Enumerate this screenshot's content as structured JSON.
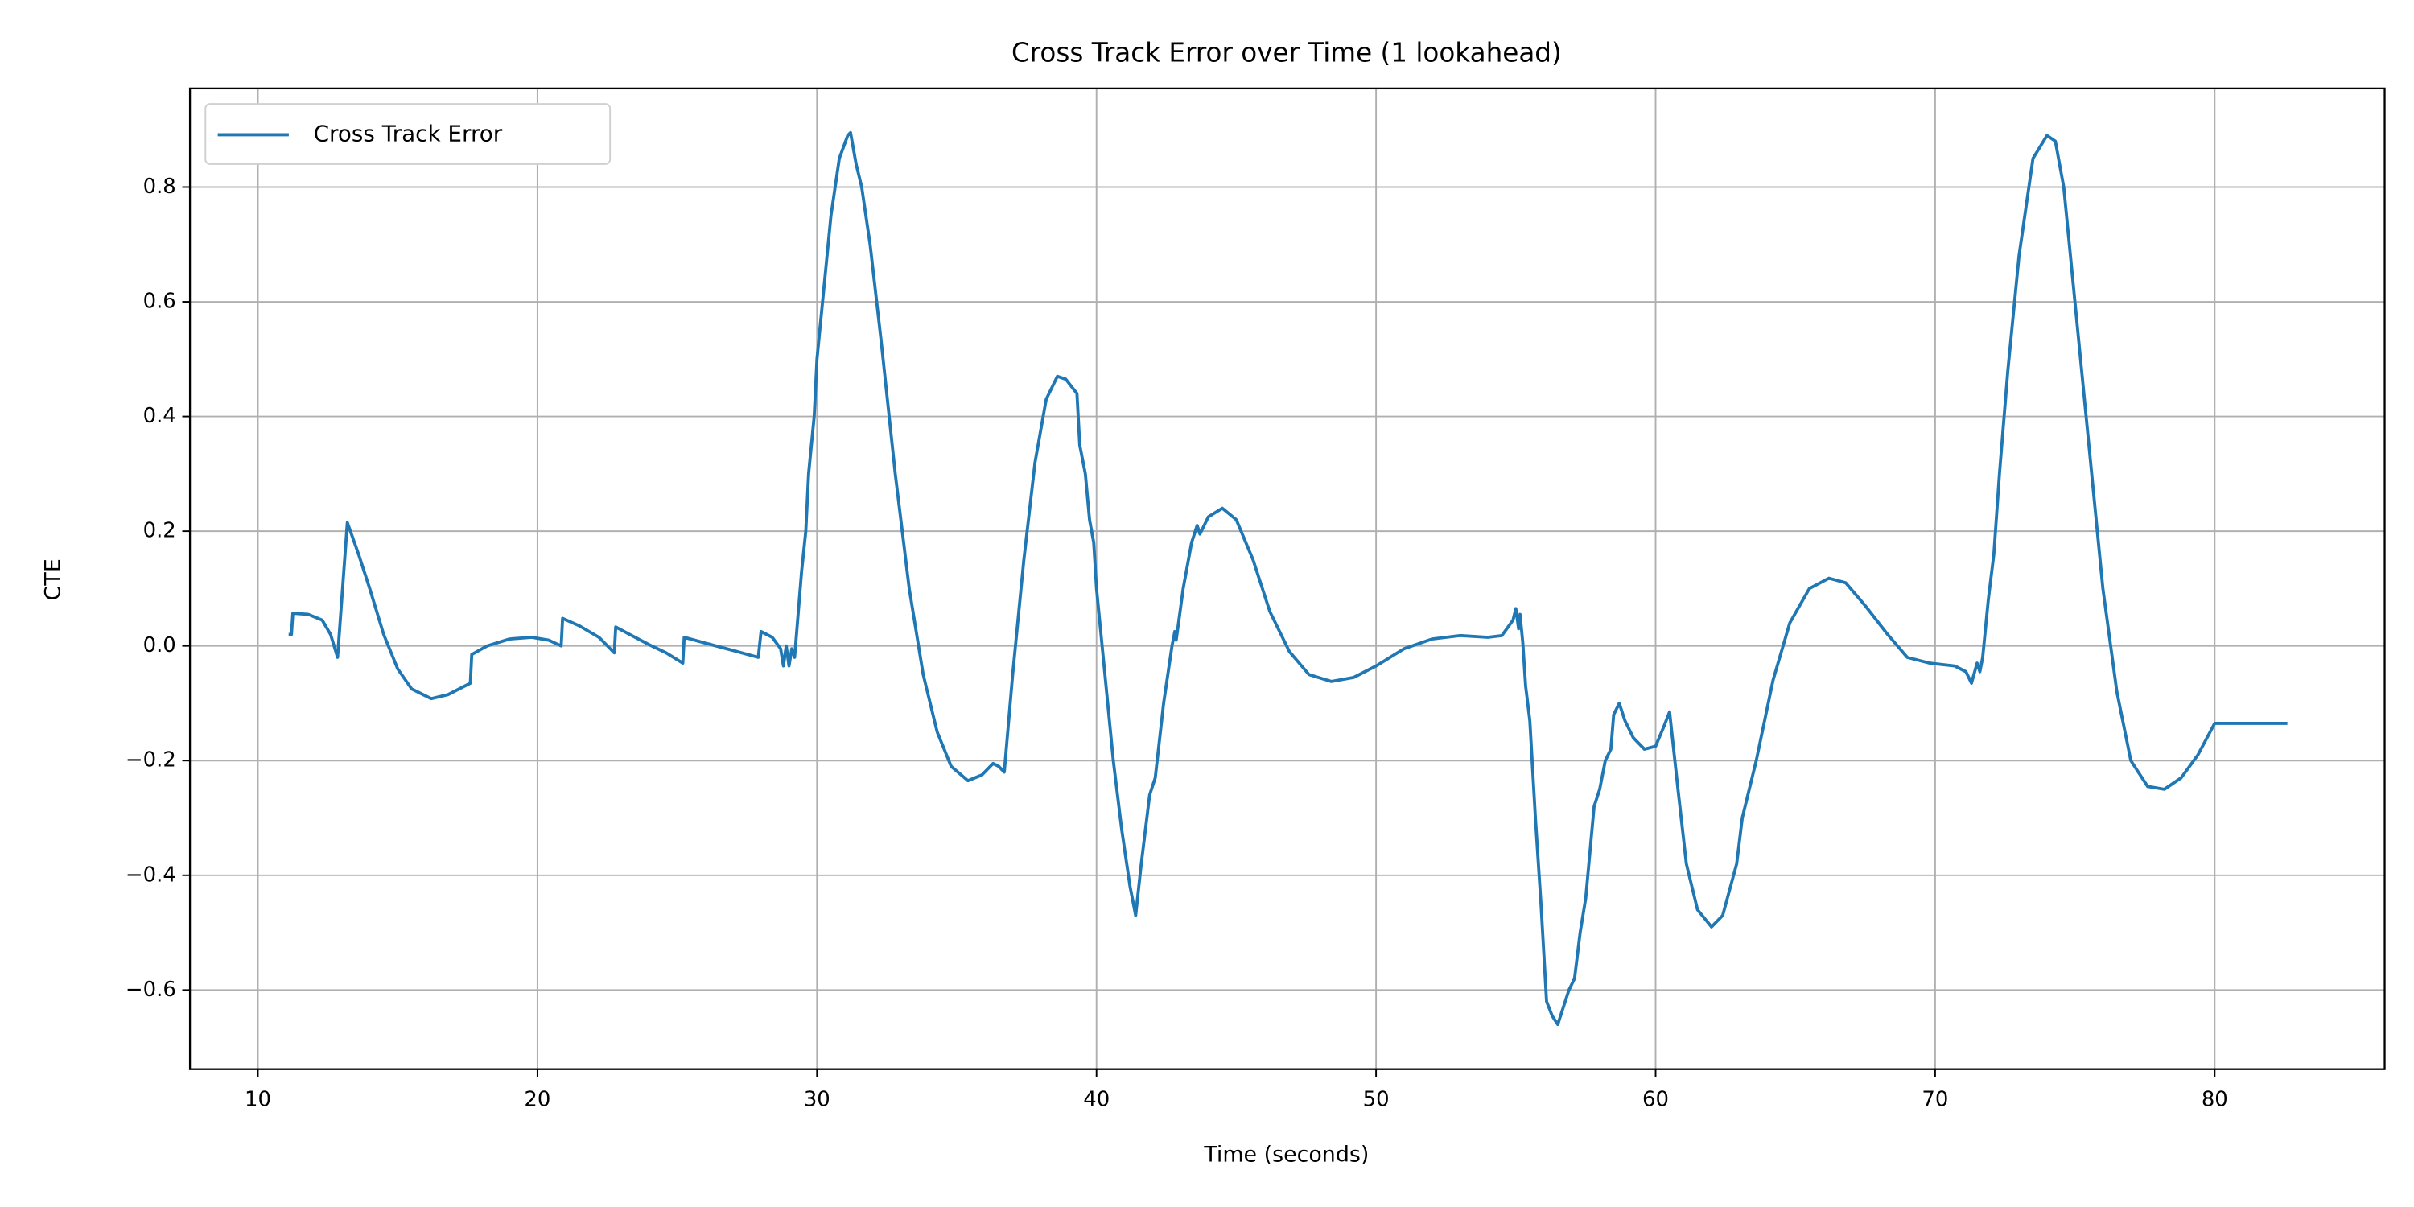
{
  "chart_data": {
    "type": "line",
    "title": "Cross Track Error over Time (1 lookahead)",
    "x_label": "Time (seconds)",
    "y_label": "CTE",
    "x": [
      11.1,
      11.2,
      11.25,
      11.8,
      12.3,
      12.6,
      12.85,
      13.2,
      13.6,
      14.0,
      14.5,
      15.0,
      15.5,
      16.2,
      16.8,
      17.6,
      17.65,
      18.2,
      19.0,
      19.8,
      20.4,
      20.85,
      20.9,
      21.5,
      22.2,
      22.75,
      22.8,
      23.3,
      24.0,
      24.6,
      25.2,
      25.25,
      26.0,
      27.0,
      27.9,
      28.0,
      28.4,
      28.7,
      28.8,
      28.9,
      29.0,
      29.1,
      29.2,
      29.3,
      29.45,
      29.6,
      29.7,
      29.9,
      30.0,
      30.2,
      30.5,
      30.8,
      31.1,
      31.2,
      31.4,
      31.6,
      31.9,
      32.3,
      32.8,
      33.3,
      33.8,
      34.3,
      34.8,
      35.4,
      35.9,
      36.3,
      36.5,
      36.7,
      37.0,
      37.4,
      37.8,
      38.2,
      38.6,
      38.9,
      39.3,
      39.4,
      39.6,
      39.75,
      39.9,
      40.0,
      40.3,
      40.6,
      40.9,
      41.2,
      41.4,
      41.6,
      41.9,
      42.1,
      42.4,
      42.7,
      42.8,
      42.85,
      43.1,
      43.4,
      43.6,
      43.7,
      44.0,
      44.5,
      45.0,
      45.6,
      46.2,
      46.9,
      47.6,
      48.4,
      49.2,
      50.0,
      51.0,
      52.0,
      53.0,
      54.0,
      54.5,
      54.9,
      55.0,
      55.1,
      55.15,
      55.25,
      55.35,
      55.5,
      55.7,
      55.9,
      56.1,
      56.3,
      56.5,
      56.7,
      56.9,
      57.1,
      57.3,
      57.5,
      57.8,
      58.0,
      58.2,
      58.4,
      58.5,
      58.7,
      58.9,
      59.2,
      59.6,
      60.0,
      60.3,
      60.5,
      60.8,
      61.1,
      61.5,
      62.0,
      62.4,
      62.9,
      63.1,
      63.6,
      64.2,
      64.8,
      65.5,
      66.2,
      66.8,
      67.5,
      68.3,
      69.0,
      69.8,
      70.7,
      71.1,
      71.3,
      71.5,
      71.6,
      71.7,
      71.9,
      72.1,
      72.3,
      72.6,
      73.0,
      73.5,
      74.0,
      74.3,
      74.6,
      75.0,
      75.5,
      76.0,
      76.5,
      77.0,
      77.6,
      78.2,
      78.8,
      79.4,
      80.0,
      82.6
    ],
    "series": [
      {
        "name": "Cross Track Error",
        "color": "#1f77b4",
        "values": [
          0.02,
          0.02,
          0.057,
          0.055,
          0.045,
          0.02,
          -0.02,
          0.215,
          0.16,
          0.1,
          0.02,
          -0.04,
          -0.075,
          -0.092,
          -0.085,
          -0.065,
          -0.015,
          0.0,
          0.012,
          0.015,
          0.01,
          0.0,
          0.048,
          0.035,
          0.015,
          -0.012,
          0.033,
          0.02,
          0.002,
          -0.012,
          -0.03,
          0.015,
          0.005,
          -0.008,
          -0.02,
          0.025,
          0.015,
          -0.005,
          -0.035,
          0.0,
          -0.035,
          -0.005,
          -0.02,
          0.04,
          0.13,
          0.2,
          0.3,
          0.4,
          0.5,
          0.6,
          0.75,
          0.85,
          0.89,
          0.895,
          0.84,
          0.8,
          0.7,
          0.53,
          0.3,
          0.1,
          -0.05,
          -0.15,
          -0.21,
          -0.235,
          -0.225,
          -0.205,
          -0.21,
          -0.22,
          -0.05,
          0.15,
          0.32,
          0.43,
          0.47,
          0.465,
          0.44,
          0.35,
          0.3,
          0.22,
          0.18,
          0.1,
          -0.05,
          -0.2,
          -0.32,
          -0.42,
          -0.47,
          -0.38,
          -0.26,
          -0.23,
          -0.1,
          0.0,
          0.025,
          0.01,
          0.1,
          0.18,
          0.21,
          0.195,
          0.225,
          0.24,
          0.22,
          0.15,
          0.06,
          -0.01,
          -0.05,
          -0.062,
          -0.055,
          -0.035,
          -0.005,
          0.012,
          0.018,
          0.015,
          0.018,
          0.045,
          0.065,
          0.03,
          0.055,
          0.005,
          -0.07,
          -0.13,
          -0.3,
          -0.45,
          -0.62,
          -0.645,
          -0.66,
          -0.63,
          -0.6,
          -0.58,
          -0.5,
          -0.44,
          -0.28,
          -0.25,
          -0.2,
          -0.18,
          -0.12,
          -0.1,
          -0.13,
          -0.16,
          -0.18,
          -0.175,
          -0.14,
          -0.115,
          -0.25,
          -0.38,
          -0.46,
          -0.49,
          -0.47,
          -0.38,
          -0.3,
          -0.2,
          -0.06,
          0.04,
          0.1,
          0.118,
          0.11,
          0.07,
          0.02,
          -0.02,
          -0.03,
          -0.035,
          -0.045,
          -0.065,
          -0.03,
          -0.045,
          -0.02,
          0.08,
          0.16,
          0.3,
          0.48,
          0.68,
          0.85,
          0.89,
          0.88,
          0.8,
          0.6,
          0.35,
          0.1,
          -0.08,
          -0.2,
          -0.245,
          -0.25,
          -0.23,
          -0.19,
          -0.135,
          -0.135
        ]
      }
    ],
    "xlim": [
      7.57,
      86.08
    ],
    "ylim": [
      -0.738,
      0.972
    ],
    "xticks": [
      10,
      20,
      30,
      40,
      50,
      60,
      70,
      80
    ],
    "yticks": [
      {
        "value": -0.6,
        "label": "−0.6"
      },
      {
        "value": -0.4,
        "label": "−0.4"
      },
      {
        "value": -0.2,
        "label": "−0.2"
      },
      {
        "value": 0,
        "label": "0.0"
      },
      0.2,
      0.4,
      0.6,
      0.8
    ],
    "grid": true,
    "legend": "upper left"
  }
}
